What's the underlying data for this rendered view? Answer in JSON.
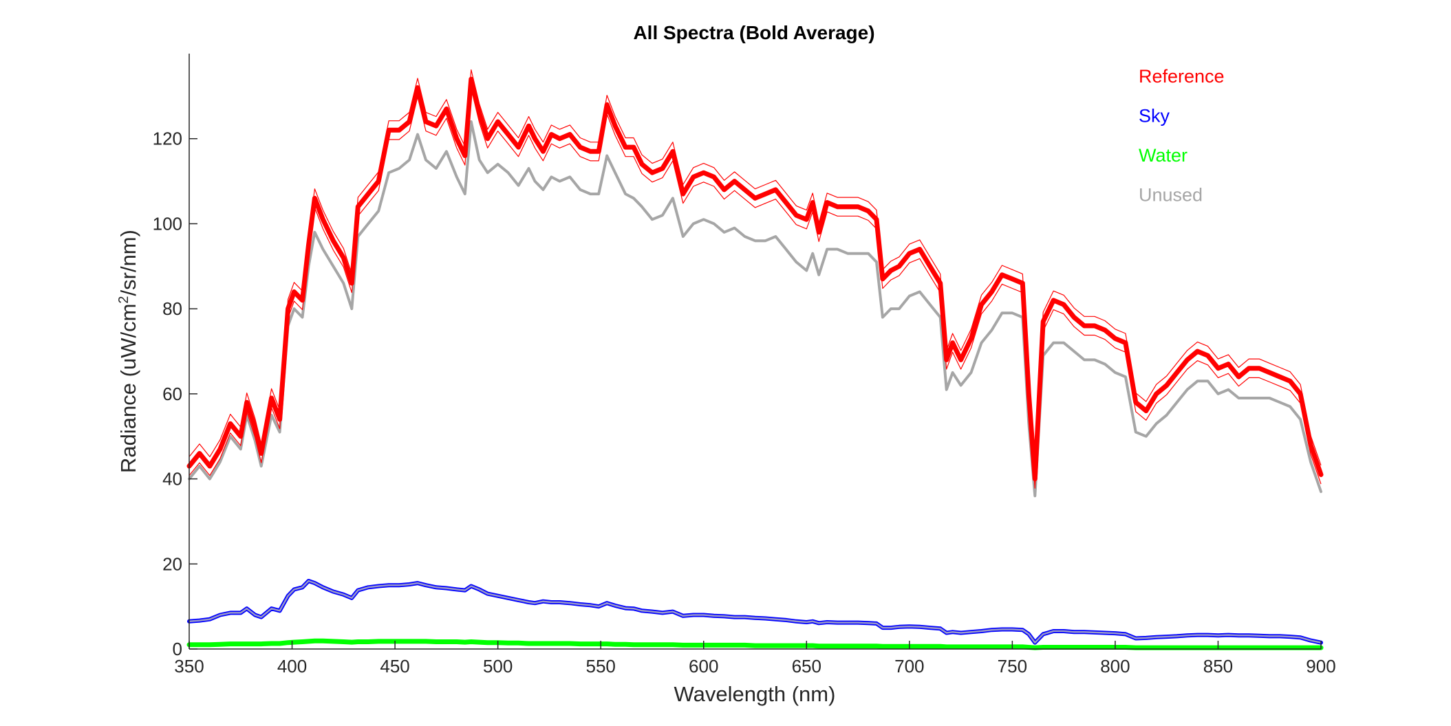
{
  "chart_data": {
    "type": "line",
    "title": "All Spectra (Bold Average)",
    "xlabel": "Wavelength (nm)",
    "ylabel_main": "Radiance (uW/cm",
    "ylabel_sup": "2",
    "ylabel_tail": "/sr/nm)",
    "xlim": [
      350,
      900
    ],
    "ylim": [
      0,
      140
    ],
    "xticks": [
      350,
      400,
      450,
      500,
      550,
      600,
      650,
      700,
      750,
      800,
      850,
      900
    ],
    "yticks": [
      0,
      20,
      40,
      60,
      80,
      100,
      120
    ],
    "grid": false,
    "legend_position": "top-right",
    "legend": [
      {
        "name": "Reference",
        "color": "#ff0000"
      },
      {
        "name": "Sky",
        "color": "#0000ff"
      },
      {
        "name": "Water",
        "color": "#00ff00"
      },
      {
        "name": "Unused",
        "color": "#a6a6a6"
      }
    ],
    "x": [
      350,
      355,
      360,
      365,
      370,
      375,
      378,
      382,
      385,
      390,
      394,
      398,
      401,
      405,
      408,
      411,
      415,
      420,
      425,
      429,
      432,
      437,
      442,
      447,
      452,
      457,
      461,
      465,
      470,
      475,
      480,
      484,
      487,
      491,
      495,
      500,
      505,
      510,
      515,
      518,
      522,
      526,
      530,
      535,
      540,
      545,
      549,
      553,
      557,
      562,
      566,
      570,
      575,
      580,
      585,
      590,
      595,
      600,
      605,
      610,
      615,
      620,
      625,
      630,
      635,
      640,
      645,
      650,
      653,
      656,
      660,
      665,
      670,
      675,
      680,
      684,
      687,
      691,
      695,
      700,
      705,
      710,
      715,
      718,
      721,
      725,
      730,
      735,
      740,
      745,
      750,
      755,
      758,
      761,
      765,
      770,
      775,
      780,
      785,
      790,
      795,
      800,
      805,
      810,
      815,
      820,
      825,
      830,
      835,
      840,
      845,
      850,
      855,
      860,
      865,
      870,
      875,
      880,
      885,
      890,
      895,
      900
    ],
    "series": [
      {
        "name": "Reference",
        "color": "#ff0000",
        "values": [
          43,
          46,
          43,
          47,
          53,
          50,
          58,
          52,
          46,
          59,
          54,
          80,
          84,
          82,
          95,
          106,
          101,
          96,
          92,
          86,
          104,
          107,
          110,
          122,
          122,
          124,
          132,
          124,
          123,
          127,
          120,
          116,
          134,
          126,
          120,
          124,
          121,
          118,
          123,
          120,
          117,
          121,
          120,
          121,
          118,
          117,
          117,
          128,
          123,
          118,
          118,
          114,
          112,
          113,
          117,
          107,
          111,
          112,
          111,
          108,
          110,
          108,
          106,
          107,
          108,
          105,
          102,
          101,
          105,
          98,
          105,
          104,
          104,
          104,
          103,
          101,
          87,
          89,
          90,
          93,
          94,
          90,
          86,
          68,
          72,
          68,
          73,
          81,
          84,
          88,
          87,
          86,
          60,
          40,
          77,
          82,
          81,
          78,
          76,
          76,
          75,
          73,
          72,
          58,
          56,
          60,
          62,
          65,
          68,
          70,
          69,
          66,
          67,
          64,
          66,
          66,
          65,
          64,
          63,
          60,
          48,
          41
        ]
      },
      {
        "name": "Sky",
        "color": "#0000ff",
        "values": [
          6.5,
          6.7,
          7.0,
          8.0,
          8.5,
          8.5,
          9.5,
          8.0,
          7.5,
          9.5,
          9.0,
          12.5,
          14.0,
          14.5,
          16.0,
          15.5,
          14.5,
          13.5,
          12.8,
          12.0,
          13.8,
          14.5,
          14.8,
          15.0,
          15.0,
          15.2,
          15.5,
          15.0,
          14.5,
          14.3,
          14.0,
          13.8,
          14.8,
          14.0,
          13.0,
          12.5,
          12.0,
          11.5,
          11.0,
          10.8,
          11.2,
          11.0,
          11.0,
          10.8,
          10.5,
          10.3,
          10.0,
          10.8,
          10.2,
          9.6,
          9.5,
          9.0,
          8.8,
          8.5,
          8.8,
          7.8,
          8.0,
          8.0,
          7.8,
          7.7,
          7.5,
          7.5,
          7.3,
          7.2,
          7.0,
          6.8,
          6.5,
          6.3,
          6.5,
          6.1,
          6.3,
          6.2,
          6.2,
          6.2,
          6.1,
          6.0,
          5.0,
          5.0,
          5.2,
          5.3,
          5.2,
          5.0,
          4.8,
          3.8,
          4.0,
          3.8,
          4.0,
          4.2,
          4.5,
          4.6,
          4.6,
          4.5,
          3.5,
          1.5,
          3.5,
          4.2,
          4.2,
          4.0,
          4.0,
          3.9,
          3.8,
          3.7,
          3.5,
          2.5,
          2.6,
          2.8,
          2.9,
          3.0,
          3.2,
          3.3,
          3.3,
          3.2,
          3.3,
          3.2,
          3.2,
          3.1,
          3.0,
          3.0,
          2.9,
          2.7,
          2.0,
          1.5
        ]
      },
      {
        "name": "Water",
        "color": "#00ff00",
        "values": [
          1.0,
          1.0,
          1.0,
          1.1,
          1.2,
          1.2,
          1.2,
          1.2,
          1.2,
          1.3,
          1.3,
          1.5,
          1.6,
          1.7,
          1.8,
          1.9,
          1.9,
          1.8,
          1.7,
          1.6,
          1.7,
          1.7,
          1.8,
          1.8,
          1.8,
          1.8,
          1.8,
          1.8,
          1.7,
          1.7,
          1.7,
          1.6,
          1.7,
          1.6,
          1.5,
          1.5,
          1.4,
          1.4,
          1.3,
          1.3,
          1.3,
          1.3,
          1.3,
          1.3,
          1.2,
          1.2,
          1.2,
          1.2,
          1.1,
          1.1,
          1.0,
          1.0,
          1.0,
          1.0,
          1.0,
          0.9,
          0.9,
          0.9,
          0.9,
          0.9,
          0.9,
          0.9,
          0.8,
          0.8,
          0.8,
          0.8,
          0.8,
          0.8,
          0.8,
          0.7,
          0.7,
          0.7,
          0.7,
          0.7,
          0.7,
          0.7,
          0.6,
          0.6,
          0.6,
          0.6,
          0.6,
          0.6,
          0.6,
          0.5,
          0.5,
          0.5,
          0.5,
          0.5,
          0.5,
          0.5,
          0.5,
          0.5,
          0.4,
          0.3,
          0.4,
          0.4,
          0.4,
          0.4,
          0.4,
          0.4,
          0.4,
          0.4,
          0.4,
          0.3,
          0.3,
          0.3,
          0.3,
          0.3,
          0.3,
          0.3,
          0.3,
          0.3,
          0.3,
          0.3,
          0.3,
          0.3,
          0.3,
          0.3,
          0.3,
          0.3,
          0.3,
          0.3
        ]
      },
      {
        "name": "Unused",
        "color": "#a6a6a6",
        "values": [
          40,
          43,
          40,
          44,
          50,
          47,
          55,
          49,
          43,
          55,
          51,
          76,
          80,
          78,
          90,
          98,
          94,
          90,
          86,
          80,
          97,
          100,
          103,
          112,
          113,
          115,
          121,
          115,
          113,
          117,
          111,
          107,
          124,
          115,
          112,
          114,
          112,
          109,
          113,
          110,
          108,
          111,
          110,
          111,
          108,
          107,
          107,
          116,
          112,
          107,
          106,
          104,
          101,
          102,
          106,
          97,
          100,
          101,
          100,
          98,
          99,
          97,
          96,
          96,
          97,
          94,
          91,
          89,
          93,
          88,
          94,
          94,
          93,
          93,
          93,
          91,
          78,
          80,
          80,
          83,
          84,
          81,
          78,
          61,
          65,
          62,
          65,
          72,
          75,
          79,
          79,
          78,
          53,
          36,
          69,
          72,
          72,
          70,
          68,
          68,
          67,
          65,
          64,
          51,
          50,
          53,
          55,
          58,
          61,
          63,
          63,
          60,
          61,
          59,
          59,
          59,
          59,
          58,
          57,
          54,
          44,
          37
        ]
      }
    ]
  }
}
